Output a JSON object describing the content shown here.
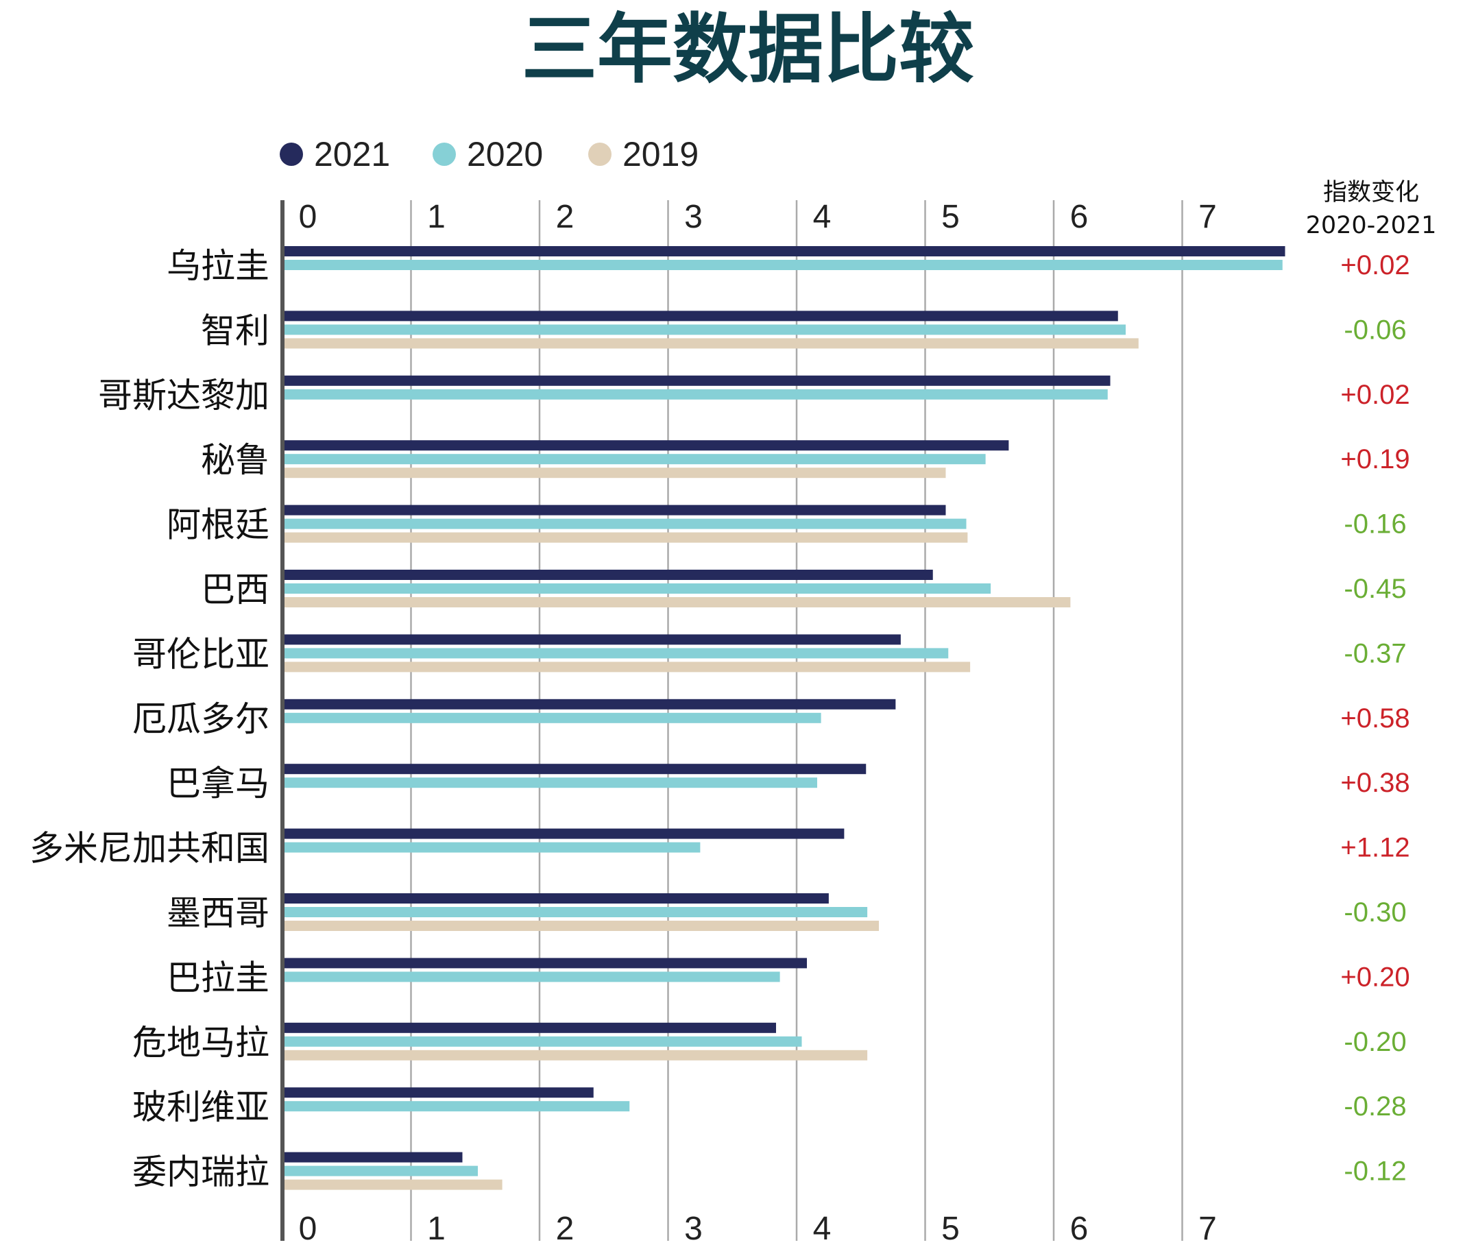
{
  "chart_data": {
    "type": "bar",
    "orientation": "horizontal",
    "title": "三年数据比较",
    "xlim": [
      0,
      7.8
    ],
    "x_ticks": [
      "0",
      "1",
      "2",
      "3",
      "4",
      "5",
      "6",
      "7"
    ],
    "grid": true,
    "legend_position": "top-left",
    "change_header": [
      "指数变化",
      "2020-2021"
    ],
    "categories": [
      "乌拉圭",
      "智利",
      "哥斯达黎加",
      "秘鲁",
      "阿根廷",
      "巴西",
      "哥伦比亚",
      "厄瓜多尔",
      "巴拿马",
      "多米尼加共和国",
      "墨西哥",
      "巴拉圭",
      "危地马拉",
      "玻利维亚",
      "委内瑞拉"
    ],
    "series": [
      {
        "name": "2021",
        "color": "#252a5c",
        "values": [
          7.8,
          6.5,
          6.44,
          5.65,
          5.16,
          5.06,
          4.81,
          4.77,
          4.54,
          4.37,
          4.25,
          4.08,
          3.84,
          2.42,
          1.4
        ]
      },
      {
        "name": "2020",
        "color": "#86d0d6",
        "values": [
          7.78,
          6.56,
          6.42,
          5.47,
          5.32,
          5.51,
          5.18,
          4.19,
          4.16,
          3.25,
          4.55,
          3.87,
          4.04,
          2.7,
          1.52
        ]
      },
      {
        "name": "2019",
        "color": "#e0d0b8",
        "values": [
          null,
          6.66,
          null,
          5.16,
          5.33,
          6.13,
          5.35,
          null,
          null,
          null,
          4.64,
          null,
          4.55,
          null,
          1.71
        ]
      }
    ],
    "changes": [
      "+0.02",
      "-0.06",
      "+0.02",
      "+0.19",
      "-0.16",
      "-0.45",
      "-0.37",
      "+0.58",
      "+0.38",
      "+1.12",
      "-0.30",
      "+0.20",
      "-0.20",
      "-0.28",
      "-0.12"
    ],
    "positive_color": "#cc2229",
    "negative_color": "#6aae35",
    "axis_color": "#555555",
    "grid_color": "#aaaaaa"
  }
}
